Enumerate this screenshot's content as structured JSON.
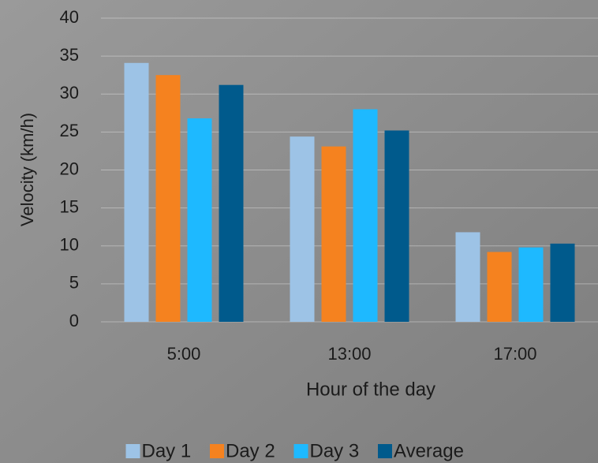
{
  "chart_data": {
    "type": "bar",
    "categories": [
      "5:00",
      "13:00",
      "17:00"
    ],
    "series": [
      {
        "name": "Day 1",
        "color": "#9dc3e6",
        "values": [
          34.1,
          24.4,
          11.8
        ]
      },
      {
        "name": "Day 2",
        "color": "#f5821f",
        "values": [
          32.5,
          23.1,
          9.2
        ]
      },
      {
        "name": "Day 3",
        "color": "#1eb9ff",
        "values": [
          26.8,
          28.0,
          9.8
        ]
      },
      {
        "name": "Average",
        "color": "#005a8c",
        "values": [
          31.2,
          25.2,
          10.3
        ]
      }
    ],
    "x_label": "Hour of the day",
    "y_label": "Velocity (km/h)",
    "ylim": [
      0,
      40
    ],
    "yticks": [
      0,
      5,
      10,
      15,
      20,
      25,
      30,
      35,
      40
    ],
    "grid": true,
    "legend": "bottom"
  }
}
